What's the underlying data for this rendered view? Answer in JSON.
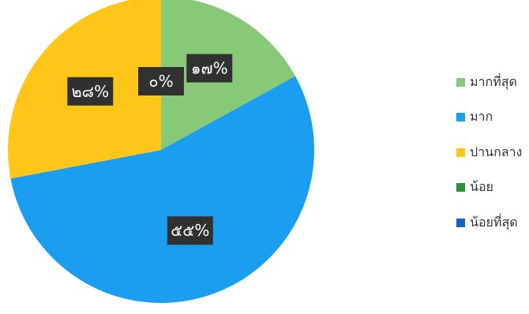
{
  "chart_data": {
    "type": "pie",
    "title": "",
    "start_angle_deg": 0,
    "direction": "clockwise",
    "legend_position": "right",
    "slices": [
      {
        "label": "มากที่สุด",
        "value": 17,
        "display": "๑๗%",
        "color": "#88c977"
      },
      {
        "label": "มาก",
        "value": 55,
        "display": "๕๕%",
        "color": "#1b9ef0"
      },
      {
        "label": "ปานกลาง",
        "value": 28,
        "display": "๒๘%",
        "color": "#ffc61a"
      },
      {
        "label": "น้อย",
        "value": 0,
        "display": "๐%",
        "color": "#2f8f3e"
      },
      {
        "label": "น้อยที่สุด",
        "value": 0,
        "display": "",
        "color": "#1565c0"
      }
    ]
  }
}
